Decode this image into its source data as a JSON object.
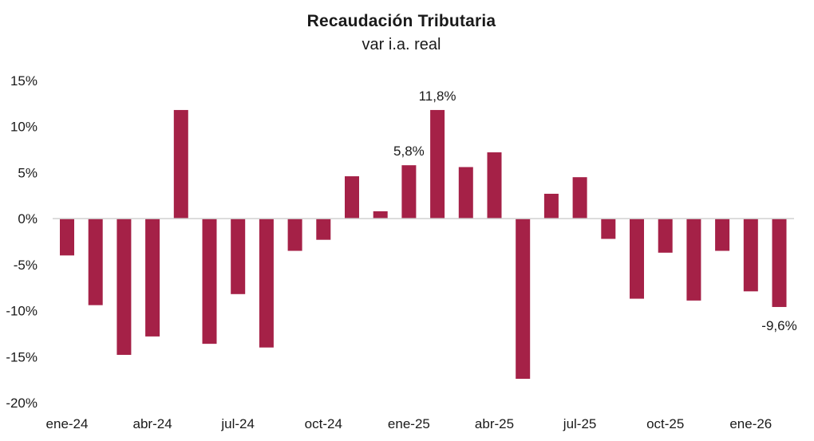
{
  "chart_data": {
    "type": "bar",
    "title": "Recaudación Tributaria",
    "subtitle": "var i.a. real",
    "xlabel": "",
    "ylabel": "",
    "ylim": [
      -20,
      15
    ],
    "yticks": [
      15,
      10,
      5,
      0,
      -5,
      -10,
      -15,
      -20
    ],
    "ytick_labels": [
      "15%",
      "10%",
      "5%",
      "0%",
      "-5%",
      "-10%",
      "-15%",
      "-20%"
    ],
    "categories": [
      "ene-24",
      "feb-24",
      "mar-24",
      "abr-24",
      "may-24",
      "jun-24",
      "jul-24",
      "ago-24",
      "sep-24",
      "oct-24",
      "nov-24",
      "dic-24",
      "ene-25",
      "feb-25",
      "mar-25",
      "abr-25",
      "may-25",
      "jun-25",
      "jul-25",
      "ago-25",
      "sep-25",
      "oct-25",
      "nov-25",
      "dic-25",
      "ene-26",
      "feb-26"
    ],
    "xtick_labels": [
      {
        "index": 0,
        "label": "ene-24"
      },
      {
        "index": 3,
        "label": "abr-24"
      },
      {
        "index": 6,
        "label": "jul-24"
      },
      {
        "index": 9,
        "label": "oct-24"
      },
      {
        "index": 12,
        "label": "ene-25"
      },
      {
        "index": 15,
        "label": "abr-25"
      },
      {
        "index": 18,
        "label": "jul-25"
      },
      {
        "index": 21,
        "label": "oct-25"
      },
      {
        "index": 24,
        "label": "ene-26"
      }
    ],
    "values": [
      -4.0,
      -9.4,
      -14.8,
      -12.8,
      11.8,
      -13.6,
      -8.2,
      -14.0,
      -3.5,
      -2.3,
      4.6,
      0.8,
      5.8,
      11.8,
      5.6,
      7.2,
      -17.4,
      2.7,
      4.5,
      -2.2,
      -8.7,
      -3.7,
      -8.9,
      -3.5,
      -7.9,
      -9.6
    ],
    "data_labels": [
      {
        "index": 12,
        "label": "5,8%"
      },
      {
        "index": 13,
        "label": "11,8%"
      },
      {
        "index": 25,
        "label": "-9,6%"
      }
    ],
    "bar_color": "#a52147",
    "grid": false
  }
}
